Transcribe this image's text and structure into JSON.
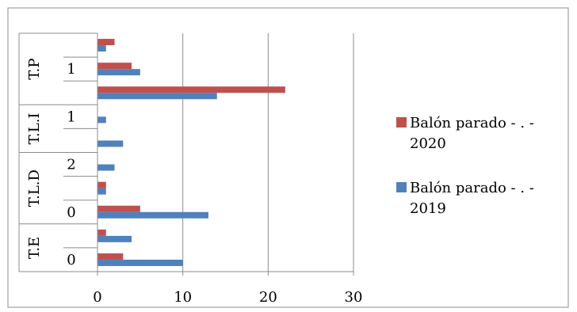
{
  "chart_data": {
    "type": "bar",
    "orientation": "horizontal",
    "title": "",
    "xlabel": "",
    "ylabel": "",
    "xlim": [
      0,
      30
    ],
    "x_ticks": [
      "0",
      "10",
      "20",
      "30"
    ],
    "grid": "vertical",
    "legend_position": "right",
    "groups": [
      {
        "label": "T.P",
        "sub_labels": [
          "",
          "1",
          ""
        ]
      },
      {
        "label": "T.L.I",
        "sub_labels": [
          "1",
          ""
        ]
      },
      {
        "label": "T.L.D",
        "sub_labels": [
          "2",
          "",
          "0"
        ]
      },
      {
        "label": "T.E",
        "sub_labels": [
          "",
          "0"
        ]
      }
    ],
    "categories": [
      "T.P / ",
      "T.P / 1",
      "T.P / ",
      "T.L.I / 1",
      "T.L.I / ",
      "T.L.D / 2",
      "T.L.D / ",
      "T.L.D / 0",
      "T.E / ",
      "T.E / 0"
    ],
    "series": [
      {
        "name": "Balón parado - . - 2020",
        "color": "#c0504d",
        "values": [
          2,
          4,
          22,
          0,
          0,
          0,
          1,
          5,
          1,
          3
        ]
      },
      {
        "name": "Balón parado - . - 2019",
        "color": "#4f81bd",
        "values": [
          1,
          5,
          14,
          1,
          3,
          2,
          1,
          13,
          4,
          10
        ]
      }
    ],
    "legend": [
      {
        "line1": "Balón parado - . -",
        "line2": "2020",
        "color": "#c0504d"
      },
      {
        "line1": "Balón parado - . -",
        "line2": "2019",
        "color": "#4f81bd"
      }
    ]
  }
}
